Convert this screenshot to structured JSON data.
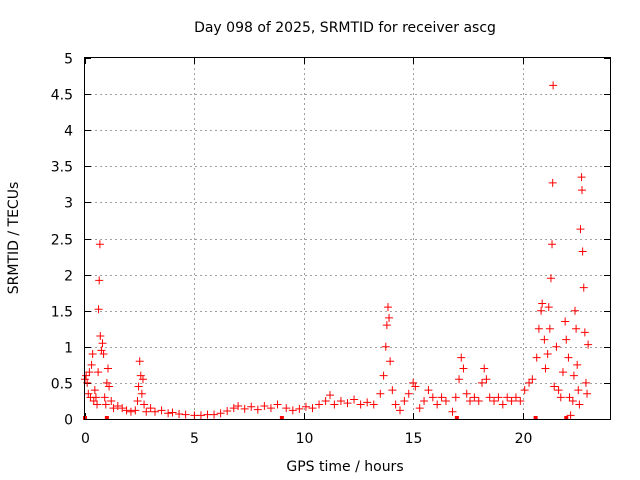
{
  "chart_data": {
    "type": "scatter",
    "title": "Day 098 of 2025, SRMTID for receiver ascg",
    "xlabel": "GPS time / hours",
    "ylabel": "SRMTID / TECUs",
    "xlim": [
      0,
      24
    ],
    "ylim": [
      0,
      5
    ],
    "grid": true,
    "marker": "+",
    "marker_color": "#ff0000",
    "xticks": [
      0,
      5,
      10,
      15,
      20
    ],
    "xtick_labels": [
      "0",
      "5",
      "10",
      "15",
      "20"
    ],
    "yticks": [
      0,
      0.5,
      1,
      1.5,
      2,
      2.5,
      3,
      3.5,
      4,
      4.5,
      5
    ],
    "ytick_labels": [
      "0",
      "0.5",
      "1",
      "1.5",
      "2",
      "2.5",
      "3",
      "3.5",
      "4",
      "4.5",
      "5"
    ],
    "series": [
      {
        "name": "SRMTID",
        "points": [
          [
            0.0,
            0.55
          ],
          [
            0.05,
            0.6
          ],
          [
            0.1,
            0.5
          ],
          [
            0.15,
            0.35
          ],
          [
            0.2,
            0.65
          ],
          [
            0.25,
            0.3
          ],
          [
            0.3,
            0.75
          ],
          [
            0.35,
            0.9
          ],
          [
            0.4,
            0.25
          ],
          [
            0.45,
            0.4
          ],
          [
            0.5,
            0.3
          ],
          [
            0.55,
            0.2
          ],
          [
            0.6,
            0.65
          ],
          [
            0.62,
            1.52
          ],
          [
            0.65,
            1.92
          ],
          [
            0.68,
            2.42
          ],
          [
            0.7,
            1.15
          ],
          [
            0.75,
            0.95
          ],
          [
            0.8,
            1.05
          ],
          [
            0.85,
            0.9
          ],
          [
            0.9,
            0.3
          ],
          [
            0.95,
            0.2
          ],
          [
            1.0,
            0.5
          ],
          [
            1.05,
            0.7
          ],
          [
            1.1,
            0.45
          ],
          [
            1.2,
            0.25
          ],
          [
            1.3,
            0.15
          ],
          [
            1.5,
            0.18
          ],
          [
            1.7,
            0.15
          ],
          [
            1.9,
            0.12
          ],
          [
            2.1,
            0.1
          ],
          [
            2.3,
            0.12
          ],
          [
            2.4,
            0.25
          ],
          [
            2.45,
            0.45
          ],
          [
            2.5,
            0.8
          ],
          [
            2.55,
            0.6
          ],
          [
            2.6,
            0.35
          ],
          [
            2.65,
            0.55
          ],
          [
            2.7,
            0.2
          ],
          [
            2.8,
            0.1
          ],
          [
            3.0,
            0.15
          ],
          [
            3.2,
            0.1
          ],
          [
            3.5,
            0.12
          ],
          [
            3.8,
            0.08
          ],
          [
            4.0,
            0.09
          ],
          [
            4.3,
            0.07
          ],
          [
            4.6,
            0.06
          ],
          [
            5.0,
            0.05
          ],
          [
            5.3,
            0.05
          ],
          [
            5.6,
            0.06
          ],
          [
            5.9,
            0.06
          ],
          [
            6.2,
            0.08
          ],
          [
            6.5,
            0.11
          ],
          [
            6.8,
            0.15
          ],
          [
            7.0,
            0.18
          ],
          [
            7.3,
            0.14
          ],
          [
            7.6,
            0.17
          ],
          [
            7.9,
            0.13
          ],
          [
            8.2,
            0.18
          ],
          [
            8.5,
            0.15
          ],
          [
            8.8,
            0.2
          ],
          [
            9.2,
            0.15
          ],
          [
            9.5,
            0.12
          ],
          [
            9.8,
            0.14
          ],
          [
            10.1,
            0.17
          ],
          [
            10.4,
            0.15
          ],
          [
            10.7,
            0.2
          ],
          [
            11.0,
            0.25
          ],
          [
            11.2,
            0.33
          ],
          [
            11.4,
            0.2
          ],
          [
            11.7,
            0.25
          ],
          [
            12.0,
            0.22
          ],
          [
            12.3,
            0.27
          ],
          [
            12.6,
            0.2
          ],
          [
            12.9,
            0.23
          ],
          [
            13.2,
            0.2
          ],
          [
            13.5,
            0.35
          ],
          [
            13.65,
            0.6
          ],
          [
            13.75,
            1.0
          ],
          [
            13.8,
            1.3
          ],
          [
            13.85,
            1.55
          ],
          [
            13.9,
            1.4
          ],
          [
            13.95,
            0.8
          ],
          [
            14.05,
            0.4
          ],
          [
            14.2,
            0.2
          ],
          [
            14.4,
            0.12
          ],
          [
            14.6,
            0.25
          ],
          [
            14.8,
            0.35
          ],
          [
            15.0,
            0.5
          ],
          [
            15.1,
            0.45
          ],
          [
            15.3,
            0.15
          ],
          [
            15.5,
            0.25
          ],
          [
            15.7,
            0.4
          ],
          [
            15.9,
            0.3
          ],
          [
            16.1,
            0.2
          ],
          [
            16.3,
            0.3
          ],
          [
            16.5,
            0.25
          ],
          [
            16.8,
            0.1
          ],
          [
            16.95,
            0.3
          ],
          [
            17.1,
            0.55
          ],
          [
            17.2,
            0.85
          ],
          [
            17.3,
            0.7
          ],
          [
            17.45,
            0.35
          ],
          [
            17.6,
            0.25
          ],
          [
            17.8,
            0.3
          ],
          [
            18.0,
            0.25
          ],
          [
            18.15,
            0.5
          ],
          [
            18.25,
            0.7
          ],
          [
            18.35,
            0.55
          ],
          [
            18.5,
            0.3
          ],
          [
            18.7,
            0.25
          ],
          [
            18.9,
            0.3
          ],
          [
            19.1,
            0.2
          ],
          [
            19.3,
            0.3
          ],
          [
            19.5,
            0.25
          ],
          [
            19.7,
            0.3
          ],
          [
            19.9,
            0.25
          ],
          [
            20.1,
            0.4
          ],
          [
            20.3,
            0.5
          ],
          [
            20.45,
            0.55
          ],
          [
            20.65,
            0.85
          ],
          [
            20.75,
            1.25
          ],
          [
            20.85,
            1.5
          ],
          [
            20.9,
            1.6
          ],
          [
            21.0,
            1.1
          ],
          [
            21.05,
            0.7
          ],
          [
            21.15,
            0.9
          ],
          [
            21.2,
            1.55
          ],
          [
            21.25,
            1.25
          ],
          [
            21.3,
            1.95
          ],
          [
            21.35,
            2.42
          ],
          [
            21.38,
            3.27
          ],
          [
            21.4,
            4.62
          ],
          [
            21.45,
            0.45
          ],
          [
            21.55,
            1.0
          ],
          [
            21.65,
            0.4
          ],
          [
            21.75,
            0.3
          ],
          [
            21.85,
            0.65
          ],
          [
            21.95,
            1.35
          ],
          [
            22.0,
            1.1
          ],
          [
            22.1,
            0.85
          ],
          [
            22.15,
            0.3
          ],
          [
            22.2,
            0.05
          ],
          [
            22.3,
            0.25
          ],
          [
            22.35,
            0.6
          ],
          [
            22.4,
            1.5
          ],
          [
            22.45,
            1.25
          ],
          [
            22.5,
            0.75
          ],
          [
            22.55,
            0.4
          ],
          [
            22.6,
            0.2
          ],
          [
            22.65,
            2.63
          ],
          [
            22.7,
            3.35
          ],
          [
            22.72,
            3.17
          ],
          [
            22.75,
            2.32
          ],
          [
            22.8,
            1.82
          ],
          [
            22.85,
            1.2
          ],
          [
            22.9,
            0.5
          ],
          [
            22.95,
            0.35
          ],
          [
            23.0,
            1.03
          ]
        ]
      }
    ],
    "baseline_markers": [
      0.0,
      1.0,
      9.0,
      17.0,
      20.6,
      22.0
    ]
  }
}
